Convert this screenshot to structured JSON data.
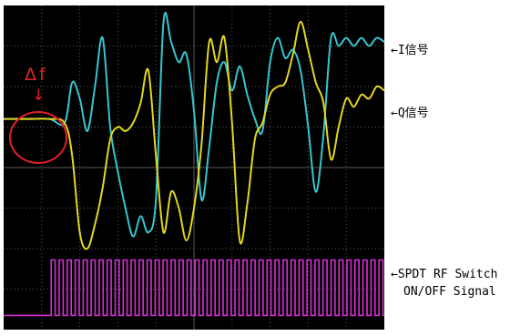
{
  "chart_data": {
    "type": "line",
    "title": "",
    "xlabel": "",
    "ylabel": "",
    "grid": true,
    "grid_divisions": {
      "x": 10,
      "y": 8
    },
    "xlim": [
      0,
      100
    ],
    "ylim": [
      0,
      8
    ],
    "series": [
      {
        "name": "I信号",
        "color": "#36c6cf",
        "x": [
          0,
          6,
          12,
          16,
          18,
          20,
          22,
          24,
          26,
          28,
          30,
          32,
          34,
          36,
          38,
          40,
          42,
          44,
          46,
          48,
          50,
          52,
          54,
          56,
          58,
          60,
          62,
          64,
          66,
          68,
          70,
          72,
          74,
          76,
          78,
          80,
          82,
          84,
          86,
          88,
          90,
          92,
          94,
          96,
          98,
          100
        ],
        "y": [
          5.2,
          5.2,
          5.2,
          5.1,
          6.1,
          5.7,
          4.9,
          6.0,
          7.2,
          5.0,
          3.9,
          3.0,
          2.3,
          2.8,
          2.4,
          3.2,
          7.6,
          7.1,
          6.6,
          6.8,
          5.4,
          3.2,
          4.5,
          6.1,
          6.6,
          5.9,
          6.5,
          5.8,
          5.2,
          4.9,
          6.6,
          7.2,
          6.7,
          6.9,
          6.4,
          5.0,
          3.4,
          4.8,
          7.2,
          7.0,
          7.2,
          7.0,
          7.2,
          7.0,
          7.2,
          7.1
        ]
      },
      {
        "name": "Q信号",
        "color": "#e2d61f",
        "x": [
          0,
          6,
          12,
          16,
          18,
          20,
          22,
          24,
          26,
          28,
          30,
          32,
          34,
          36,
          38,
          40,
          42,
          44,
          46,
          48,
          50,
          52,
          54,
          56,
          58,
          60,
          62,
          64,
          66,
          68,
          70,
          72,
          74,
          76,
          78,
          80,
          82,
          84,
          86,
          88,
          90,
          92,
          94,
          96,
          98,
          100
        ],
        "y": [
          5.2,
          5.2,
          5.2,
          5.1,
          4.3,
          2.4,
          2.0,
          2.6,
          3.5,
          4.7,
          5.0,
          4.9,
          5.1,
          5.6,
          6.4,
          4.3,
          2.4,
          3.4,
          3.0,
          2.2,
          3.0,
          4.6,
          7.1,
          6.6,
          7.2,
          5.1,
          2.2,
          3.1,
          4.7,
          5.1,
          5.8,
          6.0,
          6.1,
          6.8,
          7.6,
          6.9,
          6.1,
          5.6,
          4.2,
          5.0,
          5.7,
          5.5,
          5.8,
          5.7,
          6.0,
          5.9
        ]
      },
      {
        "name": "SPDT RF Switch ON/OFF Signal",
        "color": "#d42fd2",
        "type": "square-wave",
        "low": 0.35,
        "high": 1.72,
        "start_x": 12.5,
        "period": 2.1,
        "duty": 0.5
      }
    ],
    "legend": [
      {
        "text": "←I信号",
        "series": "I信号"
      },
      {
        "text": "←Q信号",
        "series": "Q信号"
      },
      {
        "text": "←SPDT RF Switch",
        "series": "SPDT RF Switch ON/OFF Signal"
      },
      {
        "text": "ON/OFF Signal",
        "series": "SPDT RF Switch ON/OFF Signal"
      }
    ],
    "annotations": [
      {
        "text": "Δf",
        "arrow": "↓",
        "color": "#e0202a",
        "target_x": 8,
        "target_y": 5.2
      }
    ]
  },
  "colors": {
    "screen_background": "#000000",
    "grid": "#5a5a5a",
    "annotation": "#e0202a"
  }
}
